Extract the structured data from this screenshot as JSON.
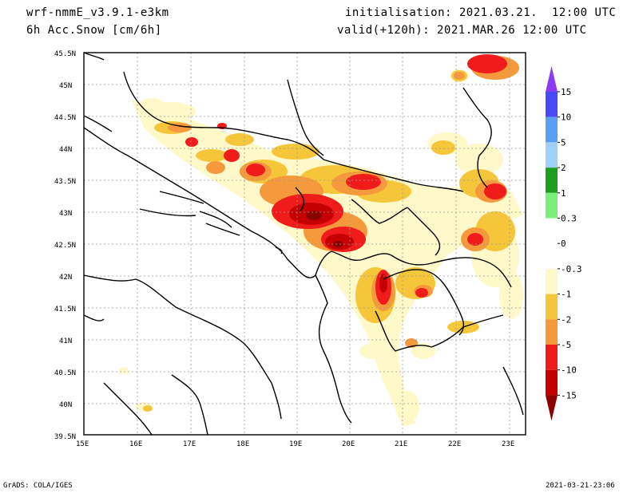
{
  "header": {
    "model": "wrf-nmmE_v3.9.1-e3km",
    "field": "6h Acc.Snow [cm/6h]",
    "init": "initialisation: 2021.03.21.  12:00 UTC",
    "valid": "valid(+120h): 2021.MAR.26 12:00 UTC"
  },
  "footer": {
    "left": "GrADS: COLA/IGES",
    "right": "2021-03-21-23:06"
  },
  "axes": {
    "lon_labels": [
      "15E",
      "16E",
      "17E",
      "18E",
      "19E",
      "20E",
      "21E",
      "22E",
      "23E"
    ],
    "lat_labels": [
      "45.5N",
      "45N",
      "44.5N",
      "44N",
      "43.5N",
      "43N",
      "42.5N",
      "42N",
      "41.5N",
      "41N",
      "40.5N",
      "40N",
      "39.5N"
    ],
    "lon_range": [
      15,
      23.3
    ],
    "lat_range": [
      39.5,
      45.5
    ]
  },
  "colorbar": {
    "labels": [
      "15",
      "10",
      "5",
      "2",
      "1",
      "0.3",
      "0",
      "-0.3",
      "-1",
      "-2",
      "-5",
      "-10",
      "-15"
    ],
    "colors": [
      "#8c3cf0",
      "#4a4af5",
      "#5aa0f0",
      "#9fd0f5",
      "#1e9e1e",
      "#7aef7a",
      "#ffffff",
      "#ffffff",
      "#fff8c8",
      "#f5c63a",
      "#f59a3c",
      "#f01c1c",
      "#c40000",
      "#8b0000"
    ]
  },
  "legend_levels": {
    "light": "#fff8c8",
    "yellow": "#f5c63a",
    "orange": "#f59a3c",
    "red": "#f01c1c",
    "darkred": "#c40000",
    "deep": "#8b0000"
  }
}
